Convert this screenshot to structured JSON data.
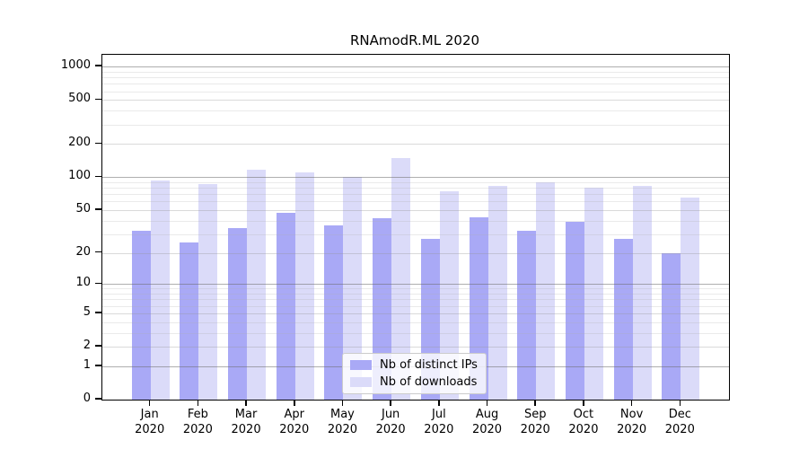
{
  "title": "RNAmodR.ML 2020",
  "colors": {
    "bar_distinct_ips": "#a9a9f6",
    "bar_downloads": "#dbdbf9",
    "grid_major": "#b3b3b3",
    "grid_minor": "#e0e0e0",
    "axis": "#000000"
  },
  "legend": {
    "items": [
      {
        "label": "Nb of distinct IPs",
        "series": "distinct_ips"
      },
      {
        "label": "Nb of downloads",
        "series": "downloads"
      }
    ],
    "position": "lower center"
  },
  "chart_data": {
    "type": "bar",
    "title": "RNAmodR.ML 2020",
    "xlabel": "",
    "ylabel": "",
    "year": "2020",
    "categories": [
      "Jan 2020",
      "Feb 2020",
      "Mar 2020",
      "Apr 2020",
      "May 2020",
      "Jun 2020",
      "Jul 2020",
      "Aug 2020",
      "Sep 2020",
      "Oct 2020",
      "Nov 2020",
      "Dec 2020"
    ],
    "series": [
      {
        "name": "Nb of distinct IPs",
        "color": "#a9a9f6",
        "values": [
          32,
          25,
          34,
          47,
          36,
          42,
          27,
          43,
          32,
          39,
          27,
          20
        ]
      },
      {
        "name": "Nb of downloads",
        "color": "#dbdbf9",
        "values": [
          94,
          86,
          117,
          110,
          100,
          148,
          74,
          84,
          90,
          81,
          83,
          65
        ]
      }
    ],
    "yscale": "log10(1+v)",
    "yticks": [
      0,
      1,
      2,
      5,
      10,
      20,
      50,
      100,
      200,
      500,
      1000
    ],
    "ytick_labels": [
      "0",
      "1",
      "2",
      "5",
      "10",
      "20",
      "50",
      "100",
      "200",
      "500",
      "1000"
    ],
    "ylim": [
      0,
      1280
    ],
    "grid": true,
    "grid_major_at": [
      1,
      10,
      100,
      1000
    ],
    "grid_minor_at": [
      2,
      5,
      20,
      50,
      200,
      500
    ],
    "legend_position": "lower center"
  }
}
